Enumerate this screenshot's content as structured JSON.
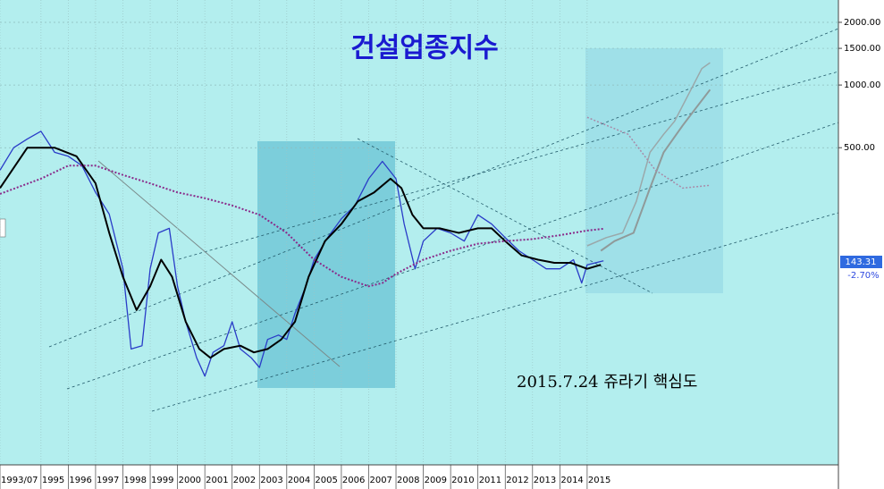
{
  "chart_data": {
    "type": "line",
    "title": "건설업종지수",
    "annotation": "2015.7.24 쥬라기 핵심도",
    "log_scale": true,
    "grid": true,
    "price_tag": "143.31",
    "change_label": "-2.70%",
    "xlim": [
      1993.5,
      2024.2
    ],
    "xticks": [
      {
        "value": 1993.5,
        "label": "1993/07"
      },
      1995,
      1996,
      1997,
      1998,
      1999,
      2000,
      2001,
      2002,
      2003,
      2004,
      2005,
      2006,
      2007,
      2008,
      2009,
      2010,
      2011,
      2012,
      2013,
      2014,
      2015
    ],
    "ylim": [
      15,
      2560
    ],
    "yticks": [
      {
        "value": 500,
        "label": "500.00"
      },
      {
        "value": 1000,
        "label": "1000.00"
      },
      {
        "value": 1500,
        "label": "1500.00"
      },
      {
        "value": 2000,
        "label": "2000.00"
      }
    ],
    "series": [
      {
        "color": "#2a3cc8",
        "dash": false,
        "width": 1.3,
        "x": [
          1993.5,
          1994,
          1994.5,
          1995,
          1995.5,
          1996,
          1996.5,
          1997,
          1997.5,
          1998,
          1998.3,
          1998.7,
          1999,
          1999.3,
          1999.7,
          2000,
          2000.3,
          2000.7,
          2001,
          2001.3,
          2001.7,
          2002,
          2002.3,
          2002.7,
          2003,
          2003.3,
          2003.7,
          2004,
          2004.3,
          2004.7,
          2005,
          2005.5,
          2006,
          2006.5,
          2007,
          2007.5,
          2008,
          2008.3,
          2008.7,
          2009,
          2009.5,
          2010,
          2010.5,
          2011,
          2011.5,
          2012,
          2012.5,
          2013,
          2013.5,
          2014,
          2014.5,
          2014.8,
          2015,
          2015.6
        ],
        "values": [
          390,
          500,
          551,
          600,
          475,
          455,
          410,
          305,
          240,
          131,
          54,
          56,
          131,
          195,
          205,
          108,
          73,
          49,
          40,
          52,
          56,
          73,
          54,
          49,
          44,
          60,
          63,
          60,
          80,
          108,
          145,
          185,
          228,
          264,
          355,
          430,
          355,
          215,
          131,
          178,
          205,
          195,
          178,
          238,
          215,
          185,
          160,
          145,
          131,
          131,
          145,
          112,
          137,
          143.31
        ]
      },
      {
        "color": "#000000",
        "dash": false,
        "width": 2,
        "x": [
          1993.5,
          1994.5,
          1995.5,
          1996.3,
          1997,
          1997.5,
          1998,
          1998.5,
          1999,
          1999.4,
          1999.8,
          2000.3,
          2000.8,
          2001.2,
          2001.7,
          2002.3,
          2002.8,
          2003.3,
          2003.8,
          2004.3,
          2004.8,
          2005.4,
          2006,
          2006.6,
          2007.2,
          2007.8,
          2008.2,
          2008.6,
          2009,
          2009.6,
          2010.3,
          2011,
          2011.5,
          2012,
          2012.6,
          2013.2,
          2013.8,
          2014.4,
          2015,
          2015.5
        ],
        "values": [
          320,
          500,
          500,
          455,
          337,
          195,
          120,
          83,
          108,
          145,
          120,
          73,
          54,
          49,
          54,
          56,
          52,
          54,
          60,
          73,
          120,
          178,
          215,
          276,
          305,
          355,
          320,
          238,
          205,
          205,
          195,
          205,
          205,
          178,
          152,
          145,
          140,
          140,
          131,
          137
        ]
      },
      {
        "color": "#8a2a8a",
        "dash": true,
        "width": 2,
        "x": [
          1993.5,
          1995,
          1996,
          1997,
          1998,
          1999,
          2000,
          2001,
          2002,
          2003,
          2004,
          2005,
          2006,
          2007,
          2007.5,
          2008,
          2009,
          2010,
          2011,
          2012,
          2013,
          2014,
          2015,
          2015.6
        ],
        "values": [
          300,
          355,
          410,
          410,
          370,
          337,
          305,
          286,
          264,
          238,
          195,
          145,
          120,
          108,
          112,
          124,
          145,
          160,
          173,
          178,
          182,
          190,
          200,
          204
        ]
      },
      {
        "color": "#9aa8aa",
        "dash": false,
        "width": 1.5,
        "x": [
          2015,
          2015.7,
          2016.3,
          2016.8,
          2017.3,
          2017.8,
          2018.2,
          2018.8,
          2019.2,
          2019.5
        ],
        "values": [
          169,
          185,
          195,
          276,
          475,
          580,
          670,
          950,
          1200,
          1280
        ]
      },
      {
        "color": "#8f9a9a",
        "dash": false,
        "width": 2,
        "x": [
          2015.5,
          2016,
          2016.7,
          2017.3,
          2017.8,
          2018.5,
          2019,
          2019.5
        ],
        "values": [
          160,
          178,
          195,
          320,
          475,
          640,
          780,
          950
        ]
      },
      {
        "color": "#a88aa8",
        "dash": true,
        "width": 1.5,
        "x": [
          2015,
          2016.5,
          2017.5,
          2018.5,
          2019.5
        ],
        "values": [
          700,
          580,
          390,
          320,
          330
        ]
      }
    ]
  }
}
